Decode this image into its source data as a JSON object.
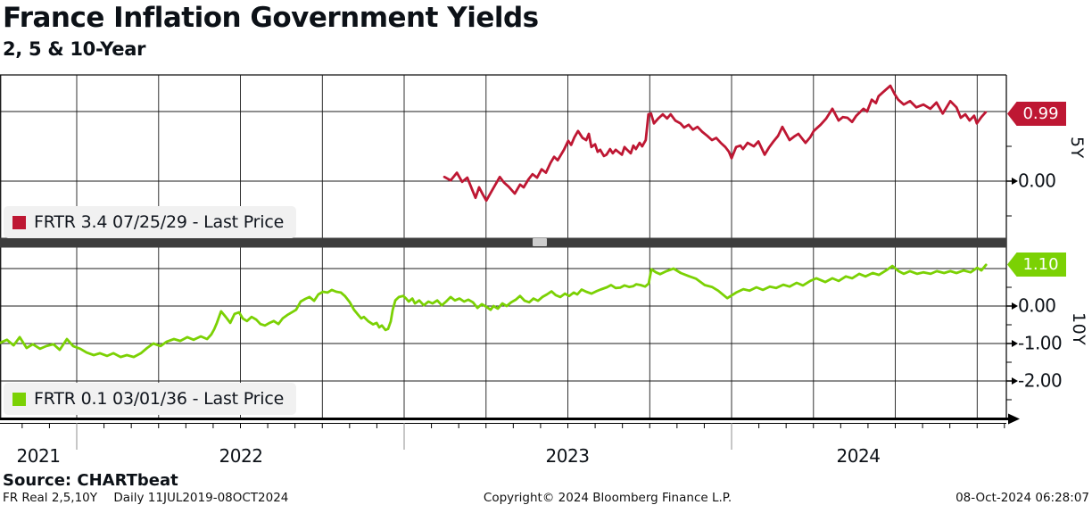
{
  "header": {
    "title": "France Inflation Government Yields",
    "subtitle": "2, 5 & 10-Year"
  },
  "x_axis": {
    "year_labels": [
      "2021",
      "2022",
      "2023",
      "2024"
    ],
    "range_start_decimal_year": 2021.77,
    "range_end_decimal_year": 2024.78,
    "gridline_interval": "quarterly",
    "tick_interval": "monthly"
  },
  "chart_data": [
    {
      "panel": "top",
      "type": "line",
      "name": "FRTR 3.4 07/25/29 - Last Price",
      "security": "FRTR 3.4 07/25/29",
      "axis_label": "5Y",
      "color": "#be1733",
      "last_price": "0.99",
      "ylim": [
        -0.82,
        1.53
      ],
      "y_gridlines": [
        1.0,
        0.0
      ],
      "y_axis_labels": [
        "0.00"
      ],
      "y_axis_label_values": [
        0.0
      ],
      "y_minor_ticks": [
        0.5,
        -0.5
      ],
      "points": [
        [
          2023.123,
          0.06
        ],
        [
          2023.142,
          0.01
        ],
        [
          2023.161,
          0.12
        ],
        [
          2023.177,
          -0.01
        ],
        [
          2023.193,
          0.05
        ],
        [
          2023.21,
          -0.15
        ],
        [
          2023.218,
          -0.24
        ],
        [
          2023.229,
          -0.09
        ],
        [
          2023.24,
          -0.19
        ],
        [
          2023.251,
          -0.28
        ],
        [
          2023.27,
          -0.12
        ],
        [
          2023.292,
          0.06
        ],
        [
          2023.305,
          -0.02
        ],
        [
          2023.319,
          -0.08
        ],
        [
          2023.338,
          -0.18
        ],
        [
          2023.354,
          -0.05
        ],
        [
          2023.365,
          -0.09
        ],
        [
          2023.379,
          0.02
        ],
        [
          2023.392,
          0.1
        ],
        [
          2023.406,
          0.05
        ],
        [
          2023.42,
          0.17
        ],
        [
          2023.433,
          0.12
        ],
        [
          2023.447,
          0.26
        ],
        [
          2023.458,
          0.35
        ],
        [
          2023.469,
          0.3
        ],
        [
          2023.488,
          0.45
        ],
        [
          2023.501,
          0.58
        ],
        [
          2023.51,
          0.52
        ],
        [
          2023.52,
          0.63
        ],
        [
          2023.531,
          0.72
        ],
        [
          2023.545,
          0.62
        ],
        [
          2023.556,
          0.59
        ],
        [
          2023.564,
          0.68
        ],
        [
          2023.572,
          0.49
        ],
        [
          2023.583,
          0.53
        ],
        [
          2023.591,
          0.42
        ],
        [
          2023.599,
          0.45
        ],
        [
          2023.61,
          0.36
        ],
        [
          2023.618,
          0.38
        ],
        [
          2023.629,
          0.46
        ],
        [
          2023.637,
          0.4
        ],
        [
          2023.646,
          0.45
        ],
        [
          2023.654,
          0.42
        ],
        [
          2023.665,
          0.38
        ],
        [
          2023.673,
          0.49
        ],
        [
          2023.681,
          0.45
        ],
        [
          2023.692,
          0.4
        ],
        [
          2023.7,
          0.51
        ],
        [
          2023.708,
          0.46
        ],
        [
          2023.719,
          0.55
        ],
        [
          2023.727,
          0.5
        ],
        [
          2023.738,
          0.59
        ],
        [
          2023.746,
          0.96
        ],
        [
          2023.754,
          0.97
        ],
        [
          2023.763,
          0.83
        ],
        [
          2023.776,
          0.9
        ],
        [
          2023.79,
          0.96
        ],
        [
          2023.803,
          0.9
        ],
        [
          2023.814,
          0.96
        ],
        [
          2023.828,
          0.87
        ],
        [
          2023.844,
          0.83
        ],
        [
          2023.855,
          0.77
        ],
        [
          2023.869,
          0.81
        ],
        [
          2023.882,
          0.74
        ],
        [
          2023.896,
          0.78
        ],
        [
          2023.91,
          0.71
        ],
        [
          2023.926,
          0.65
        ],
        [
          2023.94,
          0.59
        ],
        [
          2023.953,
          0.62
        ],
        [
          2023.967,
          0.55
        ],
        [
          2023.981,
          0.49
        ],
        [
          2023.992,
          0.42
        ],
        [
          2024.0,
          0.33
        ],
        [
          2024.014,
          0.49
        ],
        [
          2024.027,
          0.51
        ],
        [
          2024.035,
          0.46
        ],
        [
          2024.049,
          0.55
        ],
        [
          2024.068,
          0.5
        ],
        [
          2024.082,
          0.57
        ],
        [
          2024.101,
          0.38
        ],
        [
          2024.114,
          0.48
        ],
        [
          2024.128,
          0.57
        ],
        [
          2024.142,
          0.65
        ],
        [
          2024.155,
          0.78
        ],
        [
          2024.177,
          0.59
        ],
        [
          2024.191,
          0.64
        ],
        [
          2024.204,
          0.68
        ],
        [
          2024.226,
          0.55
        ],
        [
          2024.24,
          0.63
        ],
        [
          2024.251,
          0.72
        ],
        [
          2024.272,
          0.81
        ],
        [
          2024.289,
          0.9
        ],
        [
          2024.308,
          1.04
        ],
        [
          2024.327,
          0.87
        ],
        [
          2024.34,
          0.92
        ],
        [
          2024.354,
          0.91
        ],
        [
          2024.368,
          0.85
        ],
        [
          2024.381,
          0.94
        ],
        [
          2024.403,
          1.04
        ],
        [
          2024.414,
          1.0
        ],
        [
          2024.428,
          1.17
        ],
        [
          2024.441,
          1.12
        ],
        [
          2024.449,
          1.22
        ],
        [
          2024.463,
          1.28
        ],
        [
          2024.485,
          1.37
        ],
        [
          2024.498,
          1.25
        ],
        [
          2024.509,
          1.17
        ],
        [
          2024.526,
          1.1
        ],
        [
          2024.545,
          1.15
        ],
        [
          2024.564,
          1.06
        ],
        [
          2024.586,
          1.1
        ],
        [
          2024.607,
          1.04
        ],
        [
          2024.626,
          1.13
        ],
        [
          2024.645,
          0.97
        ],
        [
          2024.668,
          1.15
        ],
        [
          2024.687,
          1.06
        ],
        [
          2024.7,
          0.91
        ],
        [
          2024.714,
          0.96
        ],
        [
          2024.727,
          0.87
        ],
        [
          2024.741,
          0.94
        ],
        [
          2024.749,
          0.83
        ],
        [
          2024.763,
          0.92
        ],
        [
          2024.776,
          0.99
        ]
      ]
    },
    {
      "panel": "bottom",
      "type": "line",
      "name": "FRTR 0.1 03/01/36 - Last Price",
      "security": "FRTR 0.1 03/01/36",
      "axis_label": "10Y",
      "color": "#7bd104",
      "last_price": "1.10",
      "ylim": [
        -3.02,
        1.57
      ],
      "y_gridlines": [
        1.0,
        0.0,
        -1.0,
        -2.0
      ],
      "y_axis_labels": [
        "0.00",
        "-1.00",
        "-2.00"
      ],
      "y_axis_label_values": [
        0.0,
        -1.0,
        -2.0
      ],
      "y_minor_ticks": [
        0.5,
        -0.5,
        -1.5,
        -2.5
      ],
      "points": [
        [
          2021.766,
          -0.98
        ],
        [
          2021.787,
          -0.9
        ],
        [
          2021.807,
          -1.05
        ],
        [
          2021.826,
          -0.83
        ],
        [
          2021.847,
          -1.12
        ],
        [
          2021.866,
          -1.02
        ],
        [
          2021.888,
          -1.14
        ],
        [
          2021.907,
          -1.07
        ],
        [
          2021.929,
          -1.02
        ],
        [
          2021.948,
          -1.17
        ],
        [
          2021.97,
          -0.88
        ],
        [
          2021.989,
          -1.07
        ],
        [
          2022.011,
          -1.14
        ],
        [
          2022.03,
          -1.24
        ],
        [
          2022.052,
          -1.31
        ],
        [
          2022.071,
          -1.26
        ],
        [
          2022.093,
          -1.33
        ],
        [
          2022.112,
          -1.26
        ],
        [
          2022.134,
          -1.36
        ],
        [
          2022.153,
          -1.31
        ],
        [
          2022.174,
          -1.36
        ],
        [
          2022.196,
          -1.26
        ],
        [
          2022.215,
          -1.12
        ],
        [
          2022.234,
          -1.0
        ],
        [
          2022.256,
          -1.07
        ],
        [
          2022.275,
          -0.95
        ],
        [
          2022.297,
          -0.88
        ],
        [
          2022.316,
          -0.93
        ],
        [
          2022.338,
          -0.83
        ],
        [
          2022.357,
          -0.9
        ],
        [
          2022.379,
          -0.81
        ],
        [
          2022.398,
          -0.88
        ],
        [
          2022.411,
          -0.76
        ],
        [
          2022.42,
          -0.62
        ],
        [
          2022.428,
          -0.45
        ],
        [
          2022.441,
          -0.14
        ],
        [
          2022.455,
          -0.29
        ],
        [
          2022.469,
          -0.45
        ],
        [
          2022.482,
          -0.21
        ],
        [
          2022.496,
          -0.17
        ],
        [
          2022.507,
          -0.33
        ],
        [
          2022.52,
          -0.4
        ],
        [
          2022.534,
          -0.29
        ],
        [
          2022.548,
          -0.36
        ],
        [
          2022.561,
          -0.48
        ],
        [
          2022.575,
          -0.52
        ],
        [
          2022.589,
          -0.45
        ],
        [
          2022.602,
          -0.4
        ],
        [
          2022.616,
          -0.48
        ],
        [
          2022.629,
          -0.33
        ],
        [
          2022.643,
          -0.24
        ],
        [
          2022.657,
          -0.17
        ],
        [
          2022.67,
          -0.1
        ],
        [
          2022.684,
          0.12
        ],
        [
          2022.698,
          0.19
        ],
        [
          2022.711,
          0.24
        ],
        [
          2022.725,
          0.14
        ],
        [
          2022.738,
          0.31
        ],
        [
          2022.752,
          0.38
        ],
        [
          2022.766,
          0.36
        ],
        [
          2022.779,
          0.43
        ],
        [
          2022.793,
          0.38
        ],
        [
          2022.807,
          0.36
        ],
        [
          2022.82,
          0.26
        ],
        [
          2022.834,
          0.1
        ],
        [
          2022.847,
          -0.1
        ],
        [
          2022.861,
          -0.25
        ],
        [
          2022.869,
          -0.33
        ],
        [
          2022.877,
          -0.29
        ],
        [
          2022.891,
          -0.41
        ],
        [
          2022.905,
          -0.49
        ],
        [
          2022.916,
          -0.45
        ],
        [
          2022.924,
          -0.57
        ],
        [
          2022.932,
          -0.52
        ],
        [
          2022.943,
          -0.64
        ],
        [
          2022.951,
          -0.61
        ],
        [
          2022.959,
          -0.41
        ],
        [
          2022.965,
          -0.1
        ],
        [
          2022.973,
          0.15
        ],
        [
          2022.984,
          0.24
        ],
        [
          2022.997,
          0.27
        ],
        [
          2023.006,
          0.2
        ],
        [
          2023.014,
          0.12
        ],
        [
          2023.025,
          0.2
        ],
        [
          2023.033,
          0.07
        ],
        [
          2023.046,
          0.15
        ],
        [
          2023.06,
          0.02
        ],
        [
          2023.074,
          0.12
        ],
        [
          2023.087,
          0.07
        ],
        [
          2023.101,
          0.15
        ],
        [
          2023.115,
          0.02
        ],
        [
          2023.128,
          0.12
        ],
        [
          2023.142,
          0.24
        ],
        [
          2023.155,
          0.15
        ],
        [
          2023.169,
          0.2
        ],
        [
          2023.183,
          0.12
        ],
        [
          2023.196,
          0.17
        ],
        [
          2023.21,
          0.1
        ],
        [
          2023.224,
          -0.05
        ],
        [
          2023.237,
          0.05
        ],
        [
          2023.251,
          -0.02
        ],
        [
          2023.264,
          -0.1
        ],
        [
          2023.273,
          0.0
        ],
        [
          2023.286,
          -0.07
        ],
        [
          2023.3,
          0.07
        ],
        [
          2023.313,
          0.0
        ],
        [
          2023.327,
          0.1
        ],
        [
          2023.341,
          0.17
        ],
        [
          2023.354,
          0.27
        ],
        [
          2023.368,
          0.14
        ],
        [
          2023.382,
          0.1
        ],
        [
          2023.395,
          0.2
        ],
        [
          2023.409,
          0.14
        ],
        [
          2023.422,
          0.24
        ],
        [
          2023.436,
          0.31
        ],
        [
          2023.45,
          0.39
        ],
        [
          2023.463,
          0.29
        ],
        [
          2023.477,
          0.24
        ],
        [
          2023.491,
          0.33
        ],
        [
          2023.504,
          0.27
        ],
        [
          2023.518,
          0.36
        ],
        [
          2023.529,
          0.31
        ],
        [
          2023.542,
          0.44
        ],
        [
          2023.556,
          0.38
        ],
        [
          2023.572,
          0.33
        ],
        [
          2023.586,
          0.39
        ],
        [
          2023.6,
          0.44
        ],
        [
          2023.619,
          0.5
        ],
        [
          2023.632,
          0.56
        ],
        [
          2023.646,
          0.48
        ],
        [
          2023.66,
          0.49
        ],
        [
          2023.673,
          0.55
        ],
        [
          2023.687,
          0.51
        ],
        [
          2023.7,
          0.53
        ],
        [
          2023.709,
          0.58
        ],
        [
          2023.722,
          0.56
        ],
        [
          2023.736,
          0.52
        ],
        [
          2023.747,
          0.6
        ],
        [
          2023.755,
          0.98
        ],
        [
          2023.769,
          0.9
        ],
        [
          2023.782,
          0.85
        ],
        [
          2023.801,
          0.93
        ],
        [
          2023.823,
          1.0
        ],
        [
          2023.845,
          0.88
        ],
        [
          2023.869,
          0.8
        ],
        [
          2023.891,
          0.73
        ],
        [
          2023.918,
          0.56
        ],
        [
          2023.94,
          0.51
        ],
        [
          2023.959,
          0.41
        ],
        [
          2023.987,
          0.21
        ],
        [
          2024.014,
          0.36
        ],
        [
          2024.036,
          0.45
        ],
        [
          2024.055,
          0.41
        ],
        [
          2024.076,
          0.5
        ],
        [
          2024.096,
          0.43
        ],
        [
          2024.117,
          0.52
        ],
        [
          2024.136,
          0.48
        ],
        [
          2024.158,
          0.57
        ],
        [
          2024.177,
          0.52
        ],
        [
          2024.199,
          0.62
        ],
        [
          2024.218,
          0.55
        ],
        [
          2024.24,
          0.67
        ],
        [
          2024.259,
          0.74
        ],
        [
          2024.286,
          0.64
        ],
        [
          2024.308,
          0.74
        ],
        [
          2024.327,
          0.67
        ],
        [
          2024.349,
          0.79
        ],
        [
          2024.368,
          0.74
        ],
        [
          2024.39,
          0.86
        ],
        [
          2024.409,
          0.79
        ],
        [
          2024.431,
          0.88
        ],
        [
          2024.45,
          0.83
        ],
        [
          2024.472,
          0.95
        ],
        [
          2024.491,
          1.07
        ],
        [
          2024.51,
          0.93
        ],
        [
          2024.526,
          0.86
        ],
        [
          2024.545,
          0.93
        ],
        [
          2024.567,
          0.86
        ],
        [
          2024.586,
          0.9
        ],
        [
          2024.608,
          0.86
        ],
        [
          2024.627,
          0.93
        ],
        [
          2024.649,
          0.88
        ],
        [
          2024.668,
          0.93
        ],
        [
          2024.687,
          0.88
        ],
        [
          2024.709,
          0.95
        ],
        [
          2024.73,
          0.9
        ],
        [
          2024.75,
          1.02
        ],
        [
          2024.763,
          0.95
        ],
        [
          2024.777,
          1.1
        ]
      ]
    }
  ],
  "footer": {
    "source": "Source: CHARTbeat",
    "meta_left": "FR Real 2,5,10Y",
    "meta_range": "Daily 11JUL2019-08OCT2024",
    "copyright": "Copyright© 2024 Bloomberg Finance L.P.",
    "timestamp": "08-Oct-2024 06:28:07"
  }
}
